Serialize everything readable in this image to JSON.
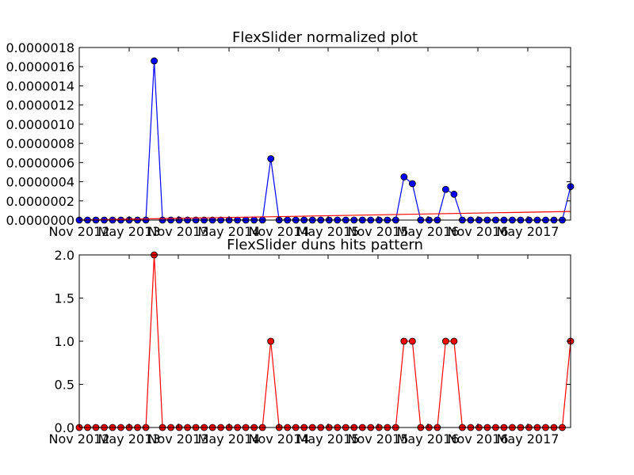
{
  "chart_data": [
    {
      "type": "line",
      "title": "FlexSlider normalized plot",
      "xlabel": "",
      "ylabel": "",
      "x_tick_labels": [
        "Nov 2012",
        "May 2013",
        "Nov 2013",
        "May 2014",
        "Nov 2014",
        "May 2015",
        "Nov 2015",
        "May 2016",
        "Nov 2016",
        "May 2017"
      ],
      "y_tick_labels": [
        "0.0000000",
        "0.0000002",
        "0.0000004",
        "0.0000006",
        "0.0000008",
        "0.0000010",
        "0.0000012",
        "0.0000014",
        "0.0000016",
        "0.0000018"
      ],
      "ylim": [
        0,
        1.8e-06
      ],
      "grid": false,
      "series": [
        {
          "color": "#0000ff",
          "marker": "circle",
          "values": [
            0,
            0,
            0,
            0,
            0,
            0,
            0,
            0,
            0,
            1.66e-06,
            0,
            0,
            0,
            0,
            0,
            0,
            0,
            0,
            0,
            0,
            0,
            0,
            0,
            6.4e-07,
            0,
            0,
            0,
            0,
            0,
            0,
            0,
            0,
            0,
            0,
            0,
            0,
            0,
            0,
            0,
            4.5e-07,
            3.8e-07,
            0,
            0,
            0,
            3.2e-07,
            2.7e-07,
            0,
            0,
            0,
            0,
            0,
            0,
            0,
            0,
            0,
            0,
            0,
            0,
            0,
            3.5e-07
          ]
        },
        {
          "color": "#ff0000",
          "marker": "none",
          "values_trend": [
            0,
            9e-08
          ]
        }
      ]
    },
    {
      "type": "line",
      "title": "FlexSlider duns hits pattern",
      "xlabel": "",
      "ylabel": "",
      "x_tick_labels": [
        "Nov 2012",
        "May 2013",
        "Nov 2013",
        "May 2014",
        "Nov 2014",
        "May 2015",
        "Nov 2015",
        "May 2016",
        "Nov 2016",
        "May 2017"
      ],
      "y_tick_labels": [
        "0.0",
        "0.5",
        "1.0",
        "1.5",
        "2.0"
      ],
      "ylim": [
        0,
        2
      ],
      "grid": false,
      "series": [
        {
          "color": "#ff0000",
          "marker": "circle",
          "values": [
            0,
            0,
            0,
            0,
            0,
            0,
            0,
            0,
            0,
            2,
            0,
            0,
            0,
            0,
            0,
            0,
            0,
            0,
            0,
            0,
            0,
            0,
            0,
            1,
            0,
            0,
            0,
            0,
            0,
            0,
            0,
            0,
            0,
            0,
            0,
            0,
            0,
            0,
            0,
            1,
            1,
            0,
            0,
            0,
            1,
            1,
            0,
            0,
            0,
            0,
            0,
            0,
            0,
            0,
            0,
            0,
            0,
            0,
            0,
            1
          ]
        }
      ]
    }
  ]
}
